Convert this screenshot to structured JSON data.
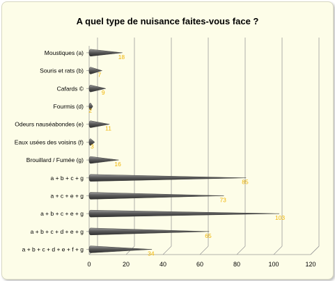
{
  "chart_data": {
    "type": "bar",
    "orientation": "horizontal",
    "title": "A quel type de nuisance faites-vous face ?",
    "xlabel": "",
    "ylabel": "",
    "xlim": [
      0,
      120
    ],
    "ticks": [
      0,
      20,
      40,
      60,
      80,
      100,
      120
    ],
    "grid": true,
    "bar_color": "#666666",
    "label_color": "#f0b400",
    "categories": [
      "Moustiques (a)",
      "Souris et rats (b)",
      "Cafards ©",
      "Fourmis (d)",
      "Odeurs nauséabondes (e)",
      "Eaux usées des voisins (f)",
      "Brouillard / Fumée (g)",
      "a + b + c + g",
      "a + c + e + g",
      "a + b + c + e + g",
      "a + b + c + d + e + g",
      "a + b + c + d + e + f + g"
    ],
    "values": [
      18,
      7,
      9,
      2,
      11,
      3,
      16,
      85,
      73,
      103,
      65,
      34
    ],
    "value_labels": [
      "18",
      "7",
      "9",
      "2",
      "11",
      "3",
      "16",
      "85",
      "73",
      "103",
      "65",
      "34"
    ]
  }
}
